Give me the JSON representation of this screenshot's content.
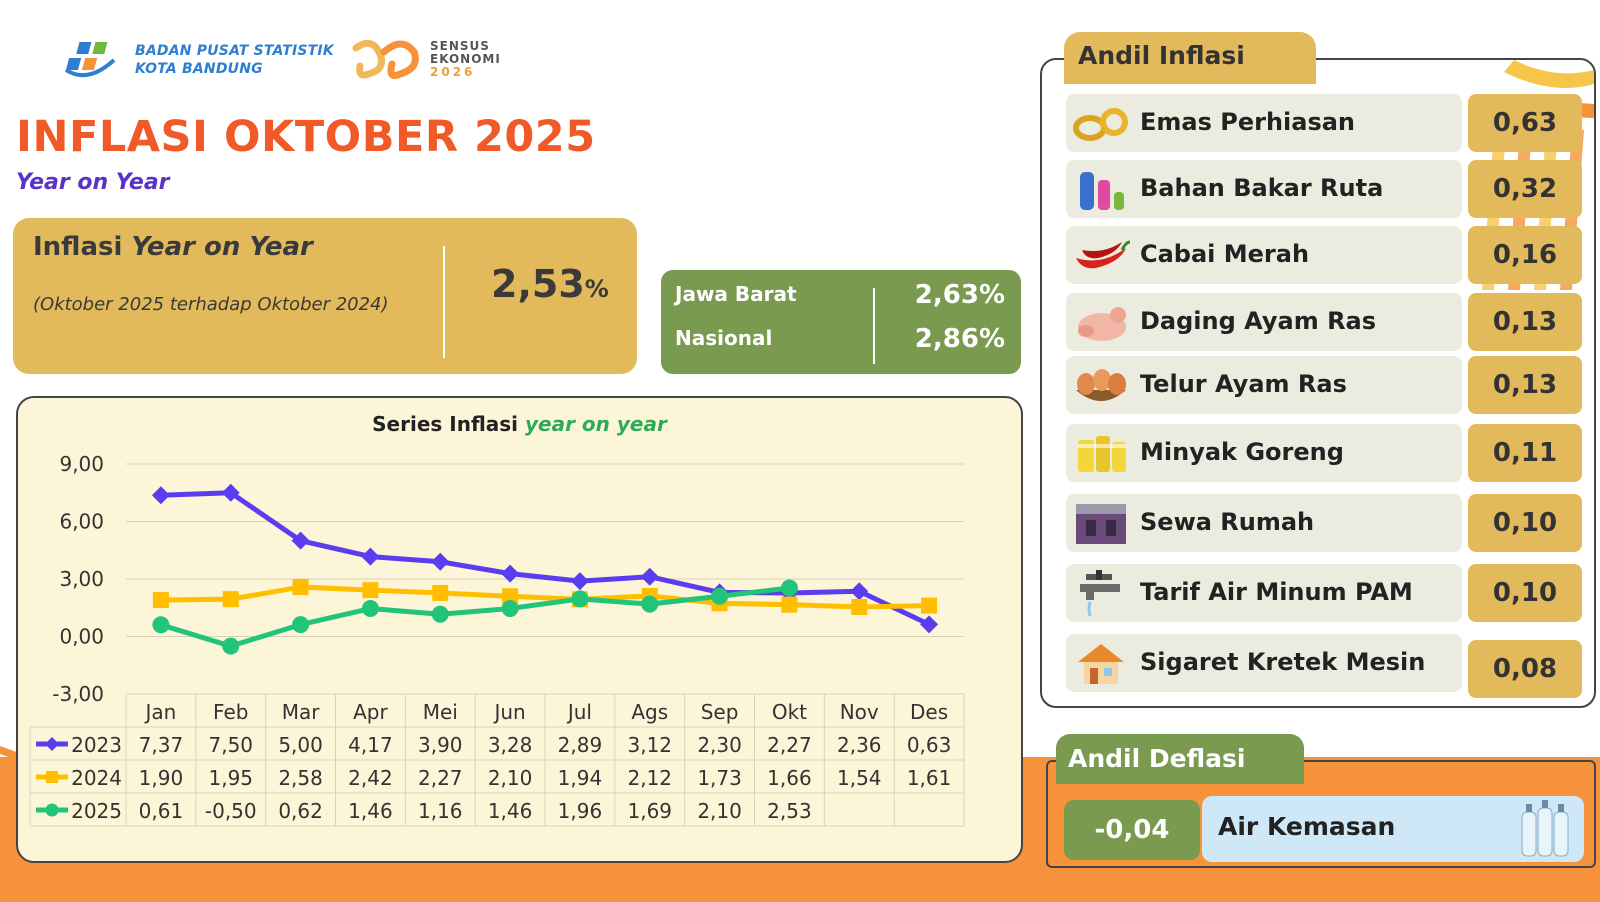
{
  "header": {
    "org_line1": "BADAN PUSAT STATISTIK",
    "org_line2": "KOTA BANDUNG",
    "event_line1": "SENSUS",
    "event_line2": "EKONOMI",
    "event_year": "2026",
    "title": "INFLASI OKTOBER 2025",
    "subtitle": "Year on Year"
  },
  "yoy": {
    "label_prefix": "Inflasi ",
    "label_em": "Year on Year",
    "note": "(Oktober 2025 terhadap Oktober 2024)",
    "value": "2,53",
    "unit": "%"
  },
  "compare": [
    {
      "name": "Jawa Barat",
      "value": "2,63%"
    },
    {
      "name": "Nasional",
      "value": "2,86%"
    }
  ],
  "colors": {
    "s2023": "#5b3df0",
    "s2024": "#ffbf00",
    "s2025": "#22c47a",
    "gold": "#e2b95b",
    "green": "#7a9a50",
    "orange": "#f5923a",
    "title": "#f05a28"
  },
  "chart_data": {
    "type": "line",
    "title_prefix": "Series Inflasi ",
    "title_em": "year on year",
    "categories": [
      "Jan",
      "Feb",
      "Mar",
      "Apr",
      "Mei",
      "Jun",
      "Jul",
      "Ags",
      "Sep",
      "Okt",
      "Nov",
      "Des"
    ],
    "yticks": [
      "9,00",
      "6,00",
      "3,00",
      "0,00",
      "-3,00"
    ],
    "ylim": [
      -3,
      9
    ],
    "grid": true,
    "legend": "table-left",
    "series": [
      {
        "name": "2023",
        "values": [
          7.37,
          7.5,
          5.0,
          4.17,
          3.9,
          3.28,
          2.89,
          3.12,
          2.3,
          2.27,
          2.36,
          0.63
        ],
        "labels": [
          "7,37",
          "7,50",
          "5,00",
          "4,17",
          "3,90",
          "3,28",
          "2,89",
          "3,12",
          "2,30",
          "2,27",
          "2,36",
          "0,63"
        ]
      },
      {
        "name": "2024",
        "values": [
          1.9,
          1.95,
          2.58,
          2.42,
          2.27,
          2.1,
          1.94,
          2.12,
          1.73,
          1.66,
          1.54,
          1.61
        ],
        "labels": [
          "1,90",
          "1,95",
          "2,58",
          "2,42",
          "2,27",
          "2,10",
          "1,94",
          "2,12",
          "1,73",
          "1,66",
          "1,54",
          "1,61"
        ]
      },
      {
        "name": "2025",
        "values": [
          0.61,
          -0.5,
          0.62,
          1.46,
          1.16,
          1.46,
          1.96,
          1.69,
          2.1,
          2.53,
          null,
          null
        ],
        "labels": [
          "0,61",
          "-0,50",
          "0,62",
          "1,46",
          "1,16",
          "1,46",
          "1,96",
          "1,69",
          "2,10",
          "2,53",
          "",
          ""
        ]
      }
    ]
  },
  "andil_inflasi": {
    "label": "Andil Inflasi",
    "items": [
      {
        "name": "Emas Perhiasan",
        "value": "0,63",
        "icon": "gold-jewelry-icon"
      },
      {
        "name": "Bahan Bakar Ruta",
        "value": "0,32",
        "icon": "gas-cylinder-icon"
      },
      {
        "name": "Cabai Merah",
        "value": "0,16",
        "icon": "red-chili-icon"
      },
      {
        "name": "Daging Ayam Ras",
        "value": "0,13",
        "icon": "chicken-meat-icon"
      },
      {
        "name": "Telur Ayam Ras",
        "value": "0,13",
        "icon": "eggs-icon"
      },
      {
        "name": "Minyak Goreng",
        "value": "0,11",
        "icon": "cooking-oil-icon"
      },
      {
        "name": "Sewa Rumah",
        "value": "0,10",
        "icon": "house-room-icon"
      },
      {
        "name": "Tarif Air Minum PAM",
        "value": "0,10",
        "icon": "water-tap-icon"
      },
      {
        "name": "Sigaret Kretek Mesin",
        "value": "0,08",
        "icon": "house-icon"
      }
    ]
  },
  "andil_deflasi": {
    "label": "Andil Deflasi",
    "value": "-0,04",
    "name": "Air Kemasan",
    "icon": "water-bottles-icon"
  }
}
